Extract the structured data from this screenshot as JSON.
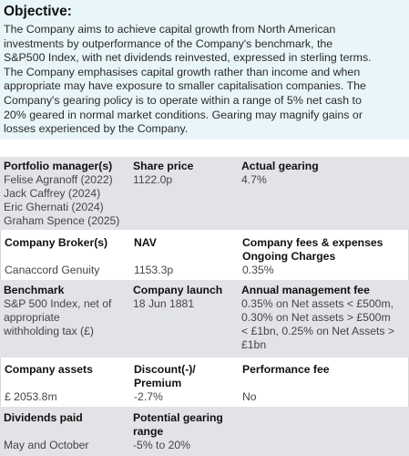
{
  "objective": {
    "heading": "Objective:",
    "lines": [
      "The Company aims to achieve capital growth from North American",
      "investments by outperformance of the Company's benchmark, the",
      "S&P500 Index, with net dividends reinvested, expressed in sterling terms.",
      "The Company emphasises capital growth rather than income and when",
      "appropriate may have exposure to smaller capitalisation companies. The",
      "Company's gearing policy is to operate within a range of 5% net cash to",
      "20% geared in normal market conditions. Gearing may magnify gains or",
      "losses experienced by the Company."
    ]
  },
  "rows": [
    {
      "c1": {
        "label": [
          "Portfolio manager(s)"
        ],
        "value": [
          "Felise Agranoff (2022)",
          "Jack Caffrey (2024)",
          "Eric Ghernati (2024)",
          "Graham Spence (2025)"
        ]
      },
      "c2": {
        "label": [
          "Share price"
        ],
        "value": [
          "1122.0p"
        ]
      },
      "c3": {
        "label": [
          "Actual gearing"
        ],
        "value": [
          "4.7%"
        ]
      }
    },
    {
      "c1": {
        "label": [
          "Company Broker(s)"
        ],
        "value": [
          "Canaccord Genuity"
        ]
      },
      "c2": {
        "label": [
          "NAV"
        ],
        "value": [
          "1153.3p"
        ]
      },
      "c3": {
        "label": [
          "Company fees & expenses",
          "Ongoing Charges"
        ],
        "value": [
          "0.35%"
        ]
      }
    },
    {
      "c1": {
        "label": [
          "Benchmark"
        ],
        "value": [
          "S&P 500 Index, net of",
          "appropriate",
          "withholding tax (£)"
        ]
      },
      "c2": {
        "label": [
          "Company launch"
        ],
        "value": [
          "18 Jun 1881"
        ]
      },
      "c3": {
        "label": [
          "Annual management fee"
        ],
        "value": [
          "0.35% on Net assets < £500m,",
          "0.30% on Net assets > £500m",
          "< £1bn, 0.25% on Net Assets >",
          "£1bn"
        ]
      }
    },
    {
      "c1": {
        "label": [
          "Company assets"
        ],
        "value": [
          "£ 2053.8m"
        ]
      },
      "c2": {
        "label": [
          "Discount(-)/",
          "Premium"
        ],
        "value": [
          "-2.7%"
        ]
      },
      "c3": {
        "label": [
          "Performance fee"
        ],
        "value": [
          "No"
        ]
      }
    },
    {
      "c1": {
        "label": [
          "Dividends paid"
        ],
        "value": [
          "May and October"
        ]
      },
      "c2": {
        "label": [
          "Potential gearing",
          "range"
        ],
        "value": [
          "-5% to 20%"
        ]
      },
      "c3": {
        "label": [
          ""
        ],
        "value": [
          ""
        ]
      }
    }
  ]
}
